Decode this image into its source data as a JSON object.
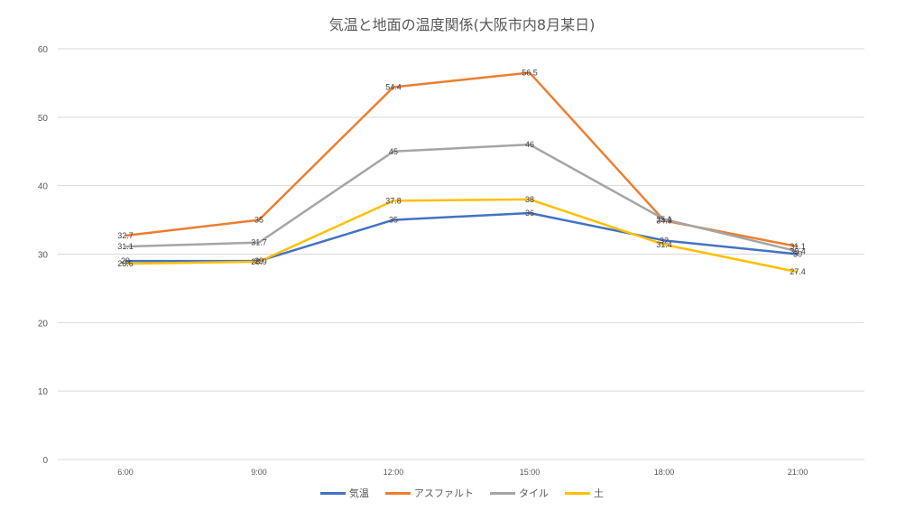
{
  "chart_data": {
    "type": "line",
    "title": "気温と地面の温度関係(大阪市内8月某日)",
    "xlabel": "",
    "ylabel": "",
    "categories": [
      "6:00",
      "9:00",
      "12:00",
      "15:00",
      "18:00",
      "21:00"
    ],
    "ylim": [
      0,
      60
    ],
    "yticks": [
      0,
      10,
      20,
      30,
      40,
      50,
      60
    ],
    "grid": true,
    "legend_position": "bottom",
    "data_labels": true,
    "series": [
      {
        "name": "気温",
        "color": "#4472C4",
        "values": [
          29,
          29,
          35,
          36,
          32,
          30
        ]
      },
      {
        "name": "アスファルト",
        "color": "#ED7D31",
        "values": [
          32.7,
          35,
          54.4,
          56.5,
          34.9,
          31.1
        ]
      },
      {
        "name": "タイル",
        "color": "#A5A5A5",
        "values": [
          31.1,
          31.7,
          45,
          46,
          35.1,
          30.4
        ]
      },
      {
        "name": "土",
        "color": "#FFC000",
        "values": [
          28.6,
          28.9,
          37.8,
          38,
          31.4,
          27.4
        ]
      }
    ]
  }
}
